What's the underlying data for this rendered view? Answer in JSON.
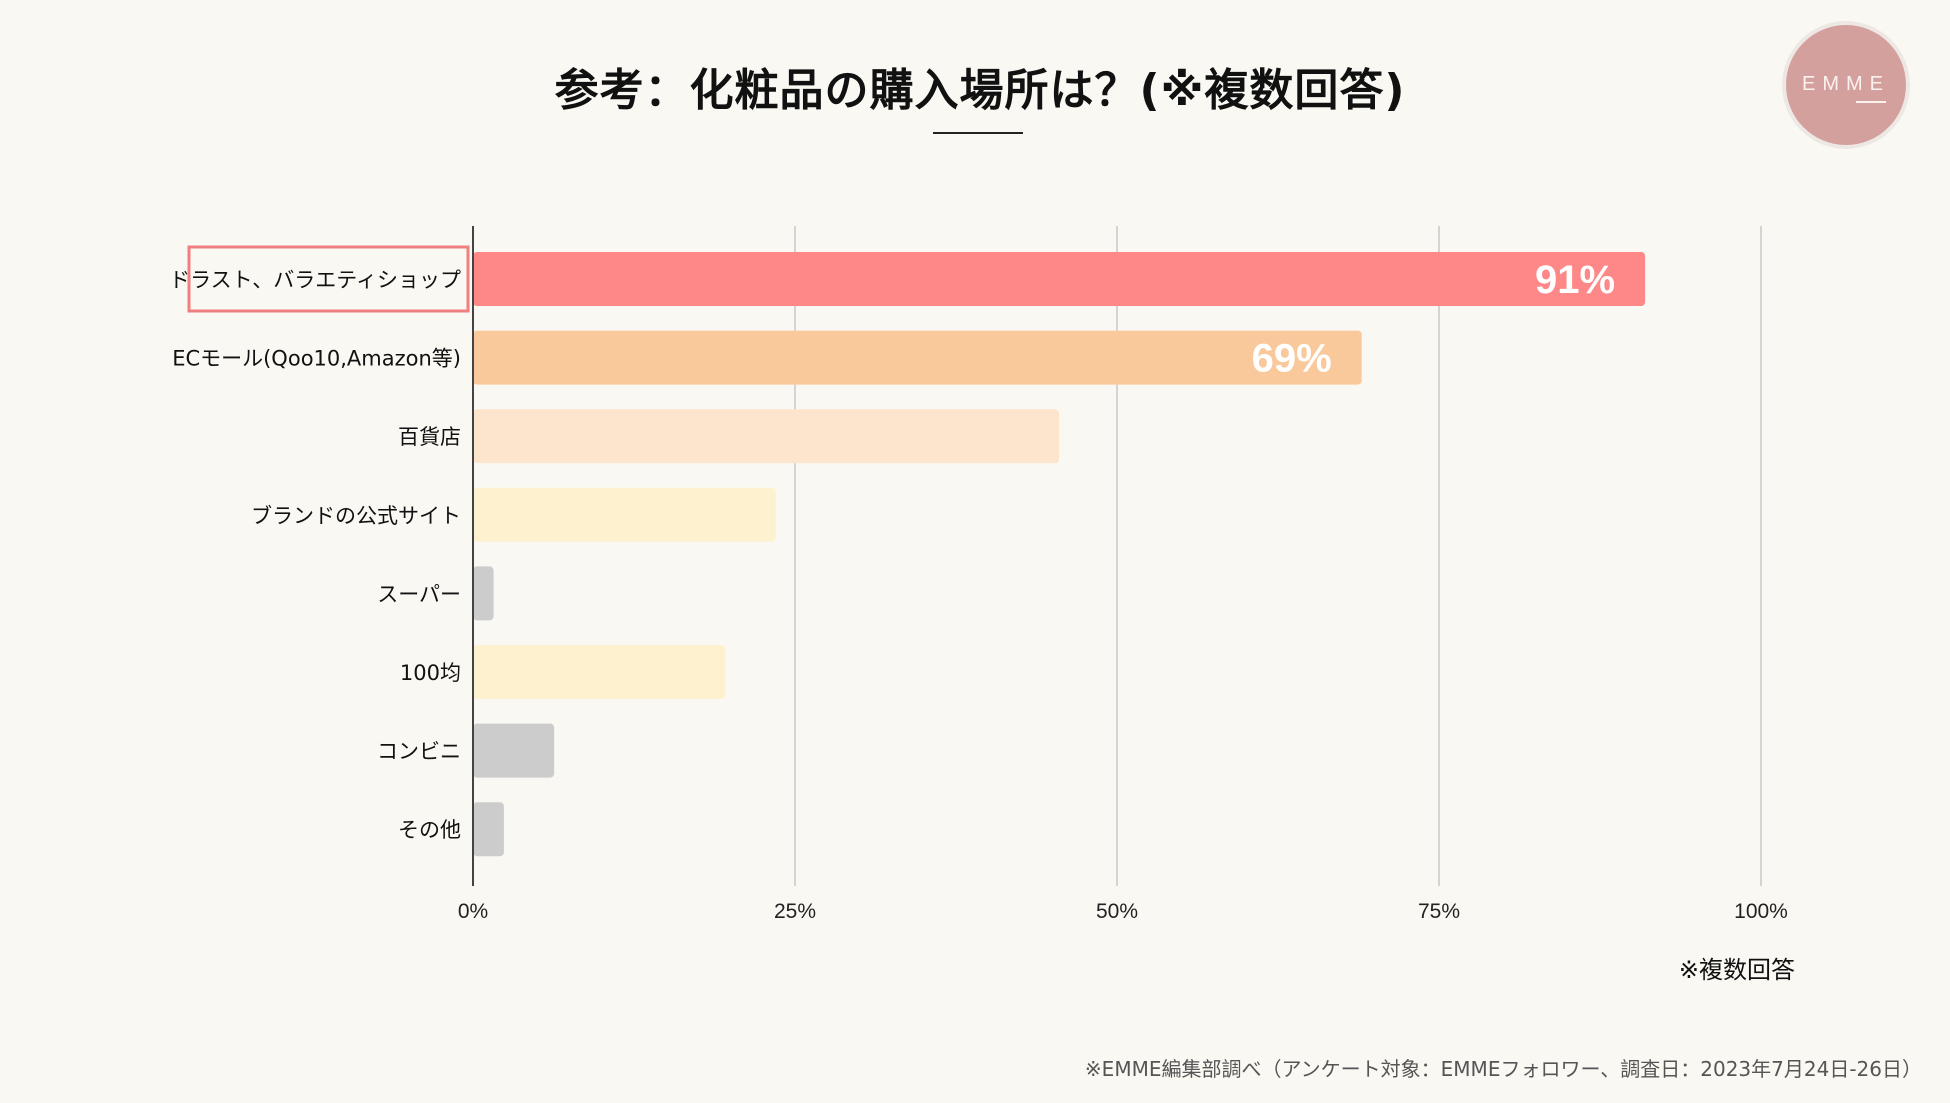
{
  "title": "参考：化粧品の購入場所は？(※複数回答)",
  "logo_text": "EMME",
  "chart_data": {
    "type": "bar",
    "orientation": "horizontal",
    "title": "参考：化粧品の購入場所は？(※複数回答)",
    "categories": [
      "ドラスト、バラエティショップ",
      "ECモール(Qoo10,Amazon等)",
      "百貨店",
      "ブランドの公式サイト",
      "スーパー",
      "100均",
      "コンビニ",
      "その他"
    ],
    "values": [
      91,
      69,
      45.5,
      23.5,
      1.6,
      19.6,
      6.3,
      2.4
    ],
    "data_labels": [
      "91%",
      "69%",
      "",
      "",
      "",
      "",
      "",
      ""
    ],
    "colors": [
      "#fe8888",
      "#f9c99c",
      "#fde5cd",
      "#fef1d0",
      "#cccccc",
      "#fef1d0",
      "#cccccc",
      "#cccccc"
    ],
    "highlighted_category": "ドラスト、バラエティショップ",
    "highlight_color": "#f08080",
    "xlim": [
      0,
      100
    ],
    "xticks": [
      "0%",
      "25%",
      "50%",
      "75%",
      "100%"
    ],
    "grid": true,
    "xlabel": "",
    "ylabel": ""
  },
  "note": "※複数回答",
  "footer": "※EMME編集部調べ（アンケート対象：EMMEフォロワー、調査日：2023年7月24日-26日）"
}
